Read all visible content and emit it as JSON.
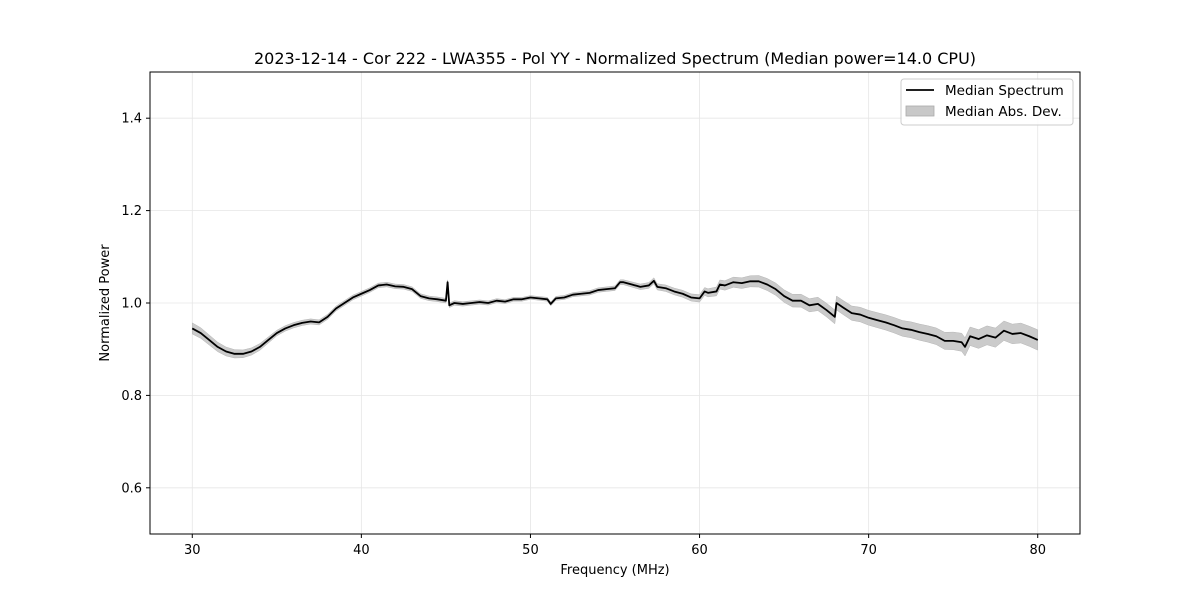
{
  "chart_data": {
    "type": "line",
    "title": "2023-12-14 - Cor 222 - LWA355 - Pol YY - Normalized Spectrum (Median power=14.0 CPU)",
    "xlabel": "Frequency (MHz)",
    "ylabel": "Normalized Power",
    "xlim": [
      27.5,
      82.5
    ],
    "ylim": [
      0.5,
      1.5
    ],
    "x_ticks": [
      30,
      40,
      50,
      60,
      70,
      80
    ],
    "y_ticks": [
      0.6,
      0.8,
      1.0,
      1.2,
      1.4
    ],
    "x_tick_labels": [
      "30",
      "40",
      "50",
      "60",
      "70",
      "80"
    ],
    "y_tick_labels": [
      "0.6",
      "0.8",
      "1.0",
      "1.2",
      "1.4"
    ],
    "grid": true,
    "legend_position": "top-right",
    "legend": [
      {
        "label": "Median Spectrum",
        "kind": "line",
        "color": "#000000"
      },
      {
        "label": "Median Abs. Dev.",
        "kind": "patch",
        "color": "#c8c8c8"
      }
    ],
    "series": [
      {
        "name": "Median Spectrum",
        "color": "#000000",
        "x": [
          30.0,
          30.5,
          31.0,
          31.5,
          32.0,
          32.5,
          33.0,
          33.5,
          34.0,
          34.5,
          35.0,
          35.5,
          36.0,
          36.5,
          37.0,
          37.5,
          38.0,
          38.5,
          39.0,
          39.5,
          40.0,
          40.5,
          41.0,
          41.5,
          42.0,
          42.5,
          43.0,
          43.5,
          44.0,
          44.5,
          45.0,
          45.1,
          45.2,
          45.5,
          46.0,
          46.5,
          47.0,
          47.5,
          48.0,
          48.5,
          49.0,
          49.5,
          50.0,
          50.5,
          51.0,
          51.2,
          51.5,
          52.0,
          52.5,
          53.0,
          53.5,
          54.0,
          54.5,
          55.0,
          55.3,
          55.5,
          56.0,
          56.5,
          57.0,
          57.3,
          57.5,
          58.0,
          58.5,
          59.0,
          59.5,
          60.0,
          60.3,
          60.5,
          61.0,
          61.2,
          61.5,
          62.0,
          62.5,
          63.0,
          63.5,
          64.0,
          64.5,
          65.0,
          65.5,
          66.0,
          66.5,
          67.0,
          67.5,
          68.0,
          68.1,
          68.5,
          69.0,
          69.5,
          70.0,
          70.5,
          71.0,
          71.5,
          72.0,
          72.5,
          73.0,
          73.5,
          74.0,
          74.5,
          75.0,
          75.5,
          75.7,
          76.0,
          76.5,
          77.0,
          77.5,
          78.0,
          78.5,
          79.0,
          79.5,
          80.0
        ],
        "y": [
          0.945,
          0.935,
          0.92,
          0.905,
          0.895,
          0.89,
          0.89,
          0.895,
          0.905,
          0.92,
          0.935,
          0.945,
          0.952,
          0.957,
          0.96,
          0.958,
          0.97,
          0.988,
          1.0,
          1.012,
          1.02,
          1.028,
          1.038,
          1.04,
          1.036,
          1.035,
          1.03,
          1.015,
          1.01,
          1.008,
          1.005,
          1.045,
          0.995,
          1.0,
          0.998,
          1.0,
          1.002,
          1.0,
          1.005,
          1.003,
          1.008,
          1.008,
          1.012,
          1.01,
          1.008,
          0.998,
          1.01,
          1.012,
          1.018,
          1.02,
          1.022,
          1.028,
          1.03,
          1.032,
          1.045,
          1.045,
          1.04,
          1.035,
          1.038,
          1.048,
          1.035,
          1.032,
          1.025,
          1.02,
          1.012,
          1.01,
          1.025,
          1.022,
          1.025,
          1.04,
          1.038,
          1.045,
          1.043,
          1.047,
          1.047,
          1.04,
          1.03,
          1.015,
          1.005,
          1.005,
          0.995,
          0.998,
          0.985,
          0.97,
          1.0,
          0.99,
          0.978,
          0.975,
          0.968,
          0.963,
          0.958,
          0.952,
          0.945,
          0.942,
          0.937,
          0.933,
          0.928,
          0.918,
          0.918,
          0.915,
          0.905,
          0.928,
          0.922,
          0.93,
          0.925,
          0.94,
          0.933,
          0.935,
          0.928,
          0.92
        ]
      },
      {
        "name": "Median Abs. Dev.",
        "color": "#c8c8c8",
        "x": [
          30.0,
          35.0,
          40.0,
          45.0,
          50.0,
          55.0,
          58.0,
          60.0,
          62.0,
          64.0,
          66.0,
          68.0,
          70.0,
          72.0,
          74.0,
          76.0,
          78.0,
          80.0
        ],
        "values": [
          0.012,
          0.006,
          0.005,
          0.005,
          0.004,
          0.005,
          0.007,
          0.008,
          0.011,
          0.013,
          0.014,
          0.015,
          0.016,
          0.017,
          0.018,
          0.02,
          0.021,
          0.022
        ]
      }
    ]
  }
}
